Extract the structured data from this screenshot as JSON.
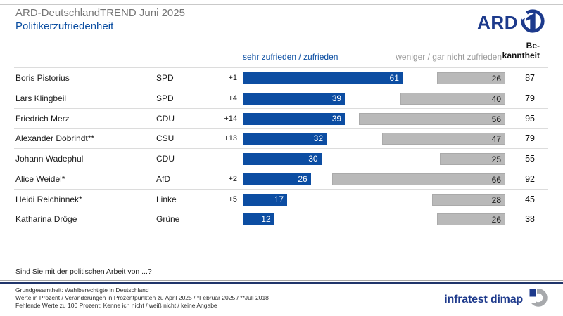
{
  "page": {
    "title": "ARD-DeutschlandTREND Juni 2025",
    "subtitle": "Politikerzufriedenheit"
  },
  "branding": {
    "ard_logo_text": "ARD",
    "infratest_text": "infratest dimap"
  },
  "colors": {
    "bar_positive_blue": "#0c4da2",
    "bar_negative_gray": "#b9b9b9",
    "accent_blue": "#0b4ea2",
    "logo_blue": "#1d3a8c",
    "title_gray": "#757575"
  },
  "chart": {
    "header_positive": "sehr zufrieden / zufrieden",
    "header_negative": "weniger / gar nicht zufrieden",
    "header_awareness_line1": "Be-",
    "header_awareness_line2": "kanntheit",
    "rows": [
      {
        "name": "Boris Pistorius",
        "party": "SPD",
        "change": "+1",
        "positive": 61,
        "negative": 26,
        "awareness": 87
      },
      {
        "name": "Lars Klingbeil",
        "party": "SPD",
        "change": "+4",
        "positive": 39,
        "negative": 40,
        "awareness": 79
      },
      {
        "name": "Friedrich Merz",
        "party": "CDU",
        "change": "+14",
        "positive": 39,
        "negative": 56,
        "awareness": 95
      },
      {
        "name": "Alexander Dobrindt**",
        "party": "CSU",
        "change": "+13",
        "positive": 32,
        "negative": 47,
        "awareness": 79
      },
      {
        "name": "Johann Wadephul",
        "party": "CDU",
        "change": "",
        "positive": 30,
        "negative": 25,
        "awareness": 55
      },
      {
        "name": "Alice Weidel*",
        "party": "AfD",
        "change": "+2",
        "positive": 26,
        "negative": 66,
        "awareness": 92
      },
      {
        "name": "Heidi Reichinnek*",
        "party": "Linke",
        "change": "+5",
        "positive": 17,
        "negative": 28,
        "awareness": 45
      },
      {
        "name": "Katharina Dröge",
        "party": "Grüne",
        "change": "",
        "positive": 12,
        "negative": 26,
        "awareness": 38
      }
    ]
  },
  "question": "Sind Sie mit der politischen Arbeit von ...?",
  "footnotes": {
    "line1": "Grundgesamtheit: Wahlberechtigte in Deutschland",
    "line2": "Werte in Prozent / Veränderungen in Prozentpunkten zu April 2025 / *Februar 2025 / **Juli 2018",
    "line3": "Fehlende Werte zu 100 Prozent: Kenne ich nicht / weiß nicht / keine Angabe"
  },
  "chart_data": {
    "type": "bar",
    "orientation": "horizontal",
    "title": "Politikerzufriedenheit",
    "context": "ARD-DeutschlandTREND Juni 2025",
    "question": "Sind Sie mit der politischen Arbeit von ...?",
    "unit": "Prozent",
    "xlim": [
      0,
      100
    ],
    "categories": [
      "Boris Pistorius (SPD)",
      "Lars Klingbeil (SPD)",
      "Friedrich Merz (CDU)",
      "Alexander Dobrindt** (CSU)",
      "Johann Wadephul (CDU)",
      "Alice Weidel* (AfD)",
      "Heidi Reichinnek* (Linke)",
      "Katharina Dröge (Grüne)"
    ],
    "series": [
      {
        "name": "sehr zufrieden / zufrieden",
        "color": "#0c4da2",
        "values": [
          61,
          39,
          39,
          32,
          30,
          26,
          17,
          12
        ]
      },
      {
        "name": "weniger / gar nicht zufrieden",
        "color": "#b9b9b9",
        "values": [
          26,
          40,
          56,
          47,
          25,
          66,
          28,
          26
        ]
      },
      {
        "name": "Bekanntheit",
        "color": null,
        "values": [
          87,
          79,
          95,
          79,
          55,
          92,
          45,
          38
        ]
      },
      {
        "name": "Veränderung in Prozentpunkten zu April 2025",
        "color": null,
        "values": [
          "+1",
          "+4",
          "+14",
          "+13",
          "",
          "+2",
          "+5",
          ""
        ]
      }
    ],
    "legend_position": "top",
    "grid": false
  }
}
